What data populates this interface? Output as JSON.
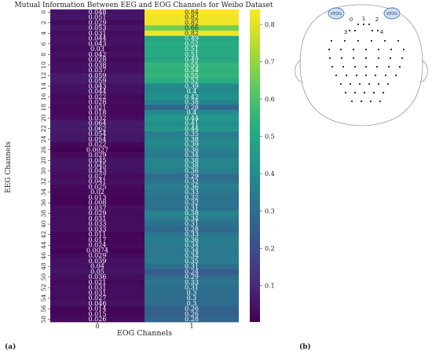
{
  "chart_data": {
    "type": "heatmap",
    "title": "Mutual Information Between EEG and EOG Channels for Weibo Dataset",
    "xlabel": "EOG Channels",
    "ylabel": "EEG Channels",
    "x_categories": [
      "0",
      "1"
    ],
    "y_tick_labels": [
      "0",
      "2",
      "4",
      "6",
      "8",
      "10",
      "12",
      "14",
      "16",
      "18",
      "20",
      "22",
      "24",
      "26",
      "28",
      "30",
      "32",
      "34",
      "36",
      "38",
      "40",
      "42",
      "44",
      "46",
      "48",
      "50",
      "52",
      "54",
      "56",
      "58"
    ],
    "values_eog0": [
      "0.048",
      "0.051",
      "0.029",
      "0.053",
      "0.031",
      "0.044",
      "0.043",
      "0.03",
      "0.042",
      "0.028",
      "0.038",
      "0.037",
      "0.059",
      "0.059",
      "0.043",
      "0.044",
      "0.022",
      "0.028",
      "0.021",
      "0.018",
      "0.032",
      "0.064",
      "0.062",
      "0.054",
      "0.054",
      "0.022",
      "0.0027",
      "0.029",
      "0.045",
      "0.045",
      "0.043",
      "0.027",
      "0.041",
      "0.025",
      "0.02",
      "0.013",
      "0.008",
      "0.037",
      "0.029",
      "0.031",
      "0.033",
      "0.033",
      "0.011",
      "0.017",
      "0.024",
      "0.0074",
      "0.029",
      "0.039",
      "0.04",
      "0.05",
      "0.036",
      "0.021",
      "0.031",
      "0.031",
      "0.027",
      "0.046",
      "0.014",
      "0.015",
      "0.026"
    ],
    "values_eog1": [
      "0.84",
      "0.82",
      "0.82",
      "0.66",
      "0.82",
      "0.49",
      "0.52",
      "0.51",
      "0.51",
      "0.49",
      "0.55",
      "0.54",
      "0.55",
      "0.52",
      "0.39",
      "0.4",
      "0.42",
      "0.38",
      "0.28",
      "0.4",
      "0.44",
      "0.41",
      "0.44",
      "0.35",
      "0.38",
      "0.39",
      "0.36",
      "0.34",
      "0.38",
      "0.38",
      "0.36",
      "0.29",
      "0.32",
      "0.36",
      "0.33",
      "0.32",
      "0.32",
      "0.31",
      "0.38",
      "0.34",
      "0.31",
      "0.28",
      "0.33",
      "0.36",
      "0.34",
      "0.34",
      "0.34",
      "0.35",
      "0.31",
      "0.24",
      "0.29",
      "0.33",
      "0.31",
      "0.3",
      "0.3",
      "0.3",
      "0.26",
      "0.26",
      "0.28"
    ],
    "colorbar_range": [
      0.0027,
      0.84
    ],
    "colorbar_ticks": [
      "0.1",
      "0.2",
      "0.3",
      "0.4",
      "0.5",
      "0.6",
      "0.7",
      "0.8"
    ],
    "colormap": "viridis"
  },
  "head_figure": {
    "eog_labels": [
      "VEOG",
      "VEOG"
    ],
    "electrode_labels": [
      "0",
      "1",
      "2",
      "3",
      "4"
    ]
  },
  "panel_labels": {
    "a": "(a)",
    "b": "(b)"
  }
}
